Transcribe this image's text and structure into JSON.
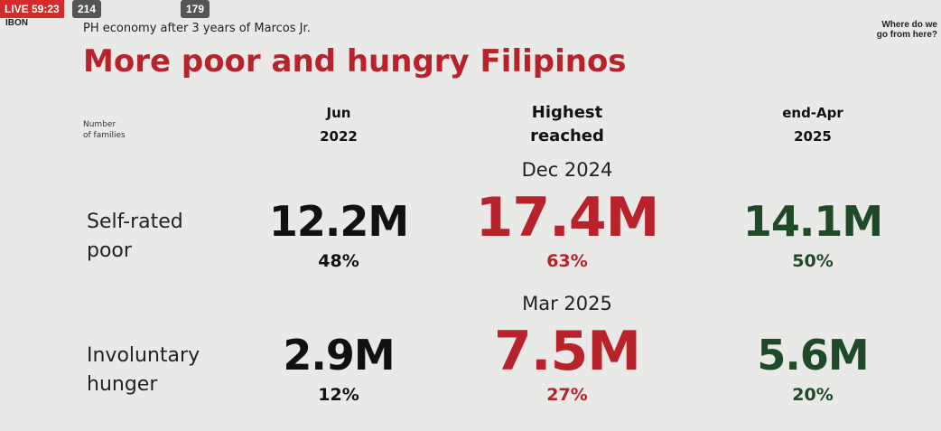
{
  "overlay": {
    "live": "LIVE 59:23",
    "viewers": "214",
    "reactions": "179",
    "channel": "IBON"
  },
  "header": {
    "subtitle": "PH economy after 3 years of Marcos Jr.",
    "title": "More poor and hungry Filipinos",
    "corner": [
      "Where do we",
      "go from here?"
    ]
  },
  "table": {
    "corner_label": [
      "Number",
      "of families"
    ],
    "columns": [
      [
        "Jun",
        "2022"
      ],
      [
        "Highest",
        "reached"
      ],
      [
        "end-Apr",
        "2025"
      ]
    ],
    "rows": [
      {
        "label": [
          "Self-rated",
          "poor"
        ],
        "period": "Dec 2024",
        "cells": [
          {
            "count": "12.2M",
            "share": "48%"
          },
          {
            "count": "17.4M",
            "share": "63%"
          },
          {
            "count": "14.1M",
            "share": "50%"
          }
        ]
      },
      {
        "label": [
          "Involuntary",
          "hunger"
        ],
        "period": "Mar 2025",
        "cells": [
          {
            "count": "2.9M",
            "share": "12%"
          },
          {
            "count": "7.5M",
            "share": "27%"
          },
          {
            "count": "5.6M",
            "share": "20%"
          }
        ]
      }
    ]
  }
}
